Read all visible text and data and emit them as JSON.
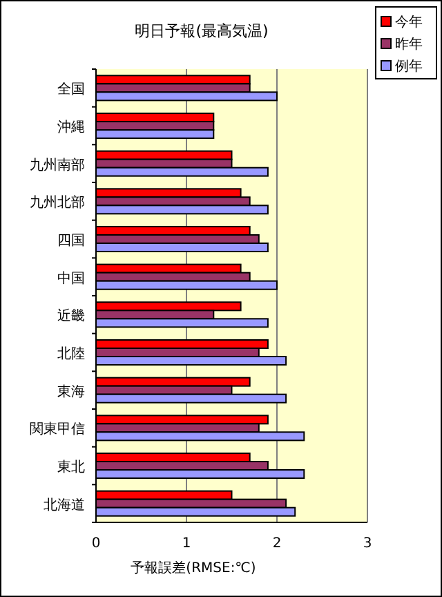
{
  "chart_data": {
    "type": "bar",
    "orientation": "horizontal",
    "title": "明日予報(最高気温)",
    "xlabel": "予報誤差(RMSE:℃)",
    "categories": [
      "全国",
      "沖縄",
      "九州南部",
      "九州北部",
      "四国",
      "中国",
      "近畿",
      "北陸",
      "東海",
      "関東甲信",
      "東北",
      "北海道"
    ],
    "series": [
      {
        "name": "今年",
        "color": "#ff0000",
        "values": [
          1.7,
          1.3,
          1.5,
          1.6,
          1.7,
          1.6,
          1.6,
          1.9,
          1.7,
          1.9,
          1.7,
          1.5
        ]
      },
      {
        "name": "昨年",
        "color": "#993366",
        "values": [
          1.7,
          1.3,
          1.5,
          1.7,
          1.8,
          1.7,
          1.3,
          1.8,
          1.5,
          1.8,
          1.9,
          2.1
        ]
      },
      {
        "name": "例年",
        "color": "#9999ff",
        "values": [
          2.0,
          1.3,
          1.9,
          1.9,
          1.9,
          2.0,
          1.9,
          2.1,
          2.1,
          2.3,
          2.3,
          2.2
        ]
      }
    ],
    "xlim": [
      0,
      3
    ],
    "xticks": [
      0,
      1,
      2,
      3
    ],
    "grid": "x",
    "legend": "top right"
  }
}
